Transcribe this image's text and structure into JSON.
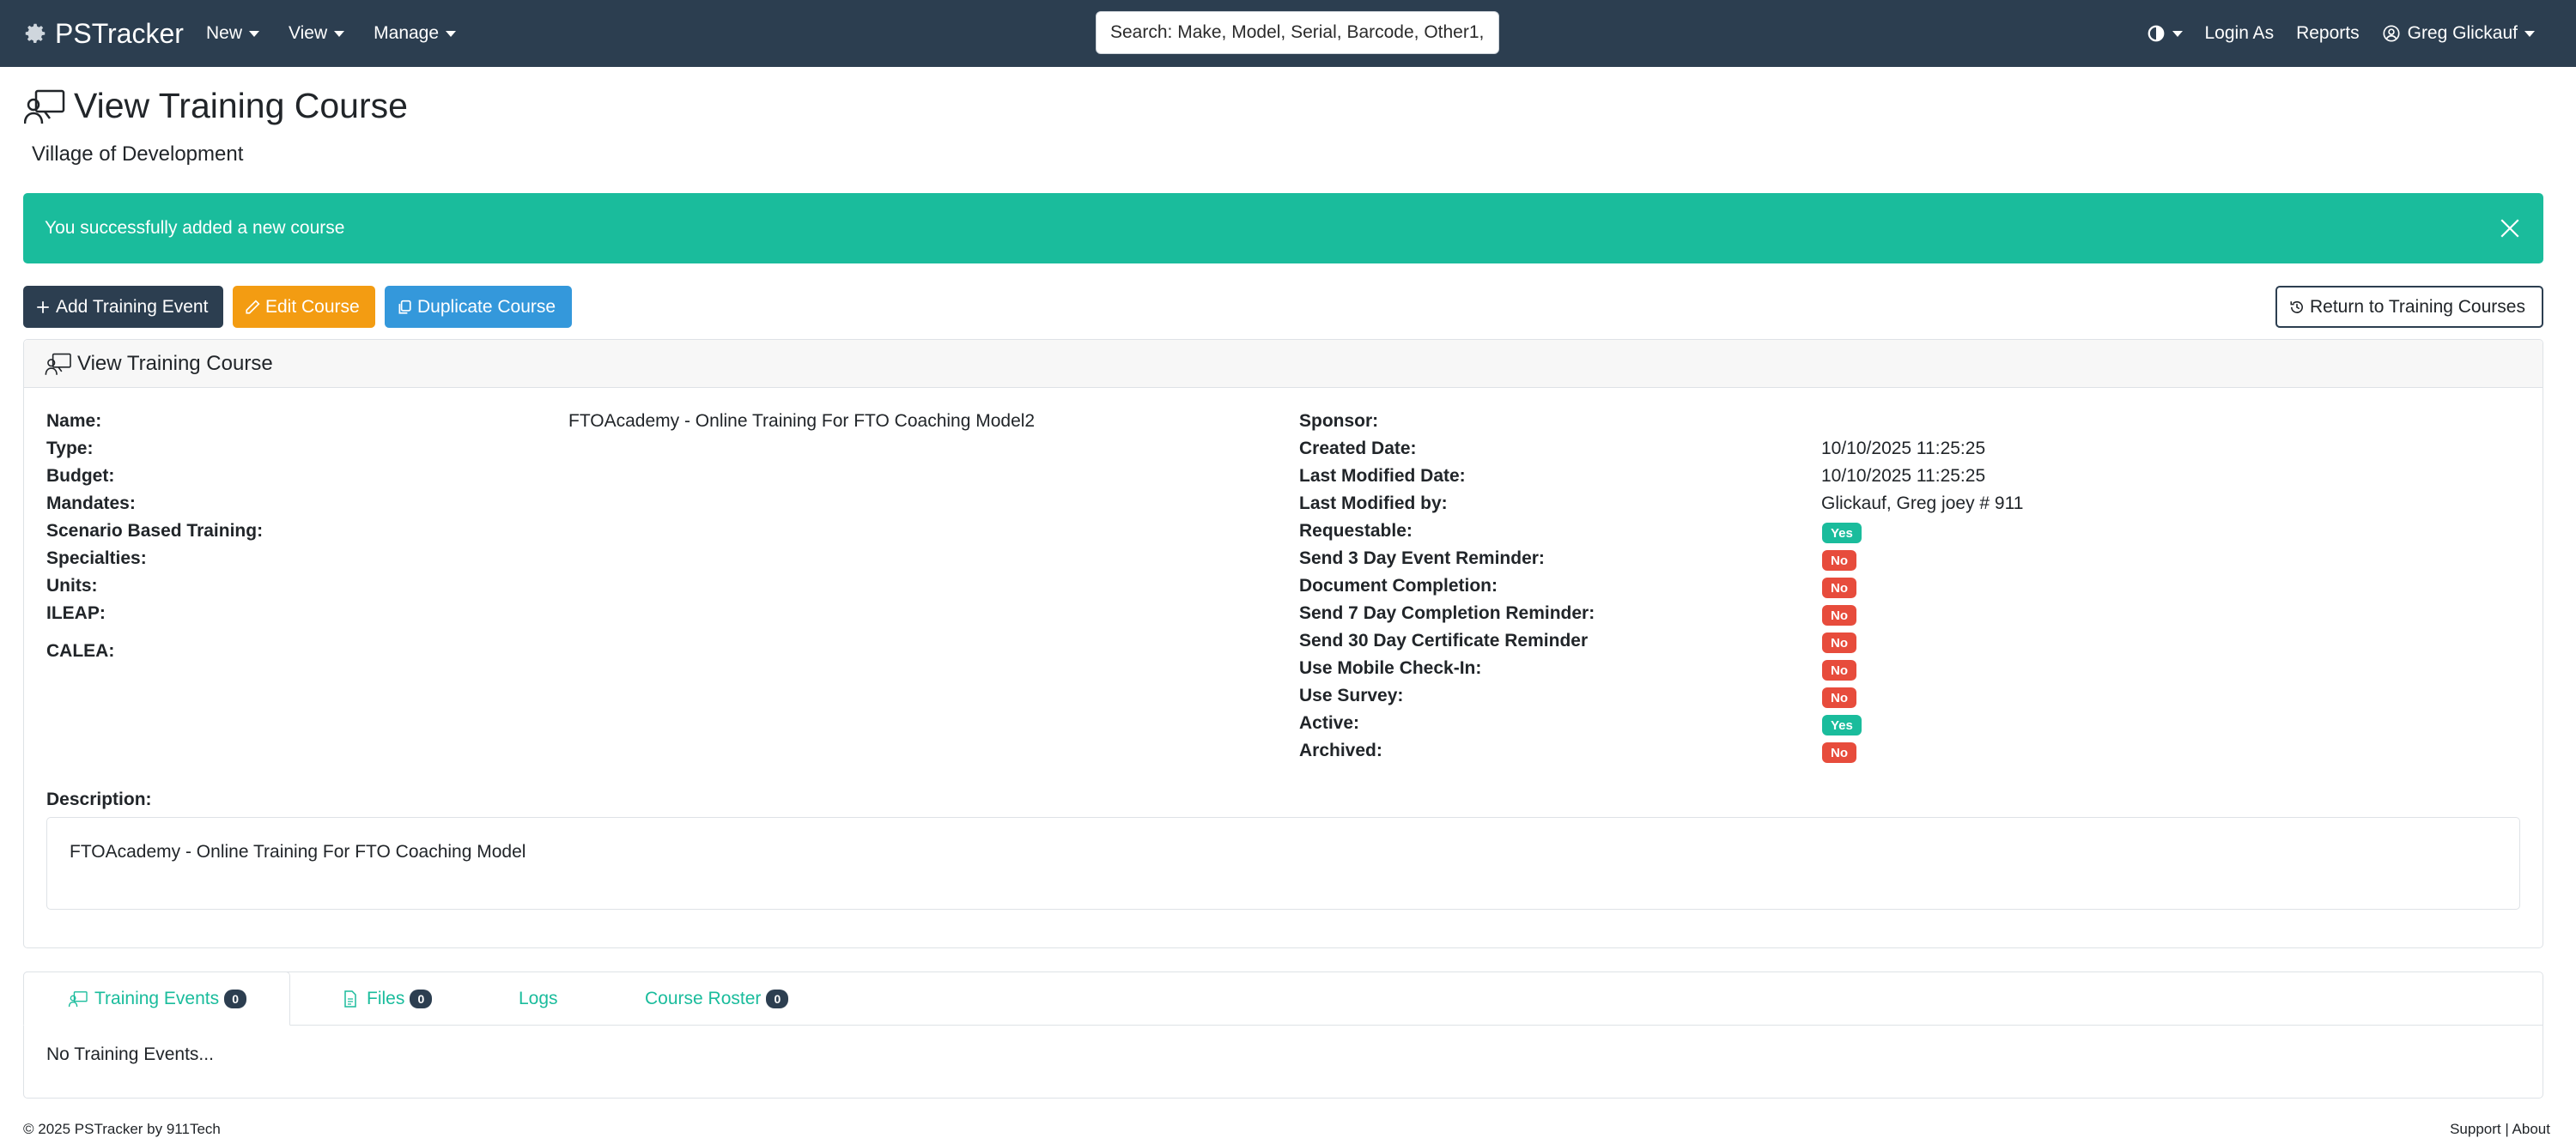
{
  "navbar": {
    "brand": "PSTracker",
    "menu": [
      {
        "label": "New"
      },
      {
        "label": "View"
      },
      {
        "label": "Manage"
      }
    ],
    "search_placeholder": "Search: Make, Model, Serial, Barcode, Other1,",
    "login_as": "Login As",
    "reports": "Reports",
    "user": "Greg Glickauf"
  },
  "page": {
    "title": "View Training Course",
    "agency": "Village of Development"
  },
  "alert": {
    "message": "You successfully added a new course"
  },
  "actions": {
    "add_event": "Add Training Event",
    "edit": "Edit Course",
    "duplicate": "Duplicate Course",
    "return": "Return to Training Courses"
  },
  "card": {
    "header": "View Training Course",
    "left_fields": [
      {
        "label": "Name:",
        "value": "FTOAcademy - Online Training For FTO Coaching Model2"
      },
      {
        "label": "Type:",
        "value": ""
      },
      {
        "label": "Budget:",
        "value": ""
      },
      {
        "label": "Mandates:",
        "value": ""
      },
      {
        "label": "Scenario Based Training:",
        "value": ""
      },
      {
        "label": "Specialties:",
        "value": ""
      },
      {
        "label": "Units:",
        "value": ""
      },
      {
        "label": "ILEAP:",
        "value": ""
      },
      {
        "label": "CALEA:",
        "value": ""
      }
    ],
    "right_fields": [
      {
        "label": "Sponsor:",
        "value": ""
      },
      {
        "label": "Created Date:",
        "value": "10/10/2025 11:25:25"
      },
      {
        "label": "Last Modified Date:",
        "value": "10/10/2025 11:25:25"
      },
      {
        "label": "Last Modified by:",
        "value": "Glickauf, Greg joey # 911"
      },
      {
        "label": "Requestable:",
        "value": "Yes"
      },
      {
        "label": "Send 3 Day Event Reminder:",
        "value": "No"
      },
      {
        "label": "Document Completion:",
        "value": "No"
      },
      {
        "label": "Send 7 Day Completion Reminder:",
        "value": "No"
      },
      {
        "label": "Send 30 Day Certificate Reminder",
        "value": "No"
      },
      {
        "label": "Use Mobile Check-In:",
        "value": "No"
      },
      {
        "label": "Use Survey:",
        "value": "No"
      },
      {
        "label": "Active:",
        "value": "Yes"
      },
      {
        "label": "Archived:",
        "value": "No"
      }
    ],
    "description_label": "Description:",
    "description": "FTOAcademy - Online Training For FTO Coaching Model"
  },
  "tabs": [
    {
      "label": "Training Events",
      "count": "0"
    },
    {
      "label": "Files",
      "count": "0"
    },
    {
      "label": "Logs"
    },
    {
      "label": "Course Roster",
      "count": "0"
    }
  ],
  "tab_content": "No Training Events...",
  "footer": {
    "left": "© 2025 PSTracker by 911Tech",
    "right": "Support | About"
  },
  "colors": {
    "navbar": "#2c3e50",
    "success": "#1abc9c",
    "warning": "#f39c12",
    "info": "#3498db",
    "danger": "#e74c3c"
  }
}
